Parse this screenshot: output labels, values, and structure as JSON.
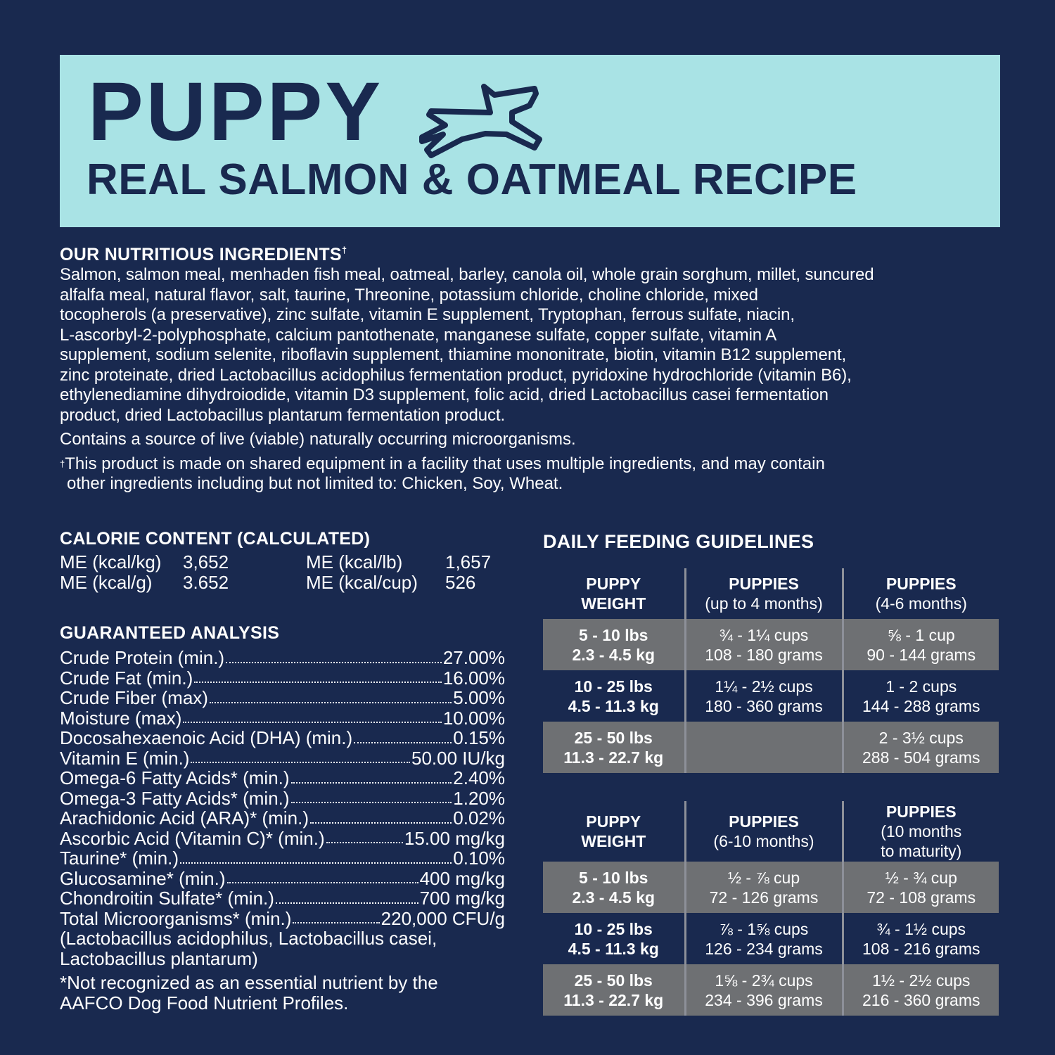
{
  "header": {
    "title": "PUPPY",
    "subtitle": "REAL SALMON & OATMEAL RECIPE",
    "icon": "running-dog-icon",
    "colors": {
      "background": "#19294f",
      "banner": "#a9e3e5",
      "row_shade": "#6e7073"
    }
  },
  "ingredients": {
    "heading": "OUR NUTRITIOUS INGREDIENTS",
    "dagger": "†",
    "lines": [
      "Salmon, salmon meal, menhaden fish meal, oatmeal, barley, canola oil, whole grain sorghum, millet, suncured",
      "alfalfa meal, natural flavor, salt, taurine, Threonine, potassium chloride, choline chloride, mixed",
      "tocopherols (a preservative), zinc sulfate, vitamin E supplement, Tryptophan, ferrous sulfate, niacin,",
      "L-ascorbyl-2-polyphosphate, calcium pantothenate, manganese sulfate, copper sulfate, vitamin A",
      "supplement, sodium selenite, riboflavin supplement, thiamine mononitrate, biotin, vitamin B12 supplement,",
      "zinc proteinate, dried Lactobacillus acidophilus fermentation product, pyridoxine hydrochloride (vitamin B6),",
      "ethylenediamine dihydroiodide, vitamin D3 supplement, folic acid, dried Lactobacillus casei fermentation",
      "product, dried Lactobacillus plantarum fermentation product."
    ],
    "microorganisms": "Contains a source of live (viable) naturally occurring microorganisms.",
    "footnote": [
      "This product is made on shared equipment in a facility that uses multiple ingredients, and may contain",
      "other ingredients including but not limited to: Chicken, Soy, Wheat."
    ]
  },
  "calorie": {
    "heading": "CALORIE CONTENT (CALCULATED)",
    "items": [
      {
        "label": "ME (kcal/kg)",
        "value": "3,652"
      },
      {
        "label": "ME (kcal/lb)",
        "value": "1,657"
      },
      {
        "label": "ME (kcal/g)",
        "value": "3.652"
      },
      {
        "label": "ME (kcal/cup)",
        "value": "526"
      }
    ]
  },
  "analysis": {
    "heading": "GUARANTEED ANALYSIS",
    "items": [
      {
        "label": "Crude Protein (min.)",
        "value": "27.00%"
      },
      {
        "label": "Crude Fat (min.)",
        "value": "16.00%"
      },
      {
        "label": "Crude Fiber (max)",
        "value": "5.00%"
      },
      {
        "label": "Moisture (max)",
        "value": "10.00%"
      },
      {
        "label": "Docosahexaenoic Acid (DHA) (min.)",
        "value": "0.15%"
      },
      {
        "label": "Vitamin E (min.)",
        "value": "50.00 IU/kg"
      },
      {
        "label": "Omega-6 Fatty Acids* (min.)",
        "value": "2.40%"
      },
      {
        "label": "Omega-3 Fatty Acids* (min.)",
        "value": "1.20%"
      },
      {
        "label": "Arachidonic Acid (ARA)* (min.)",
        "value": "0.02%"
      },
      {
        "label": "Ascorbic Acid (Vitamin C)* (min.)",
        "value": "15.00 mg/kg"
      },
      {
        "label": "Taurine* (min.)",
        "value": "0.10%"
      },
      {
        "label": "Glucosamine* (min.)",
        "value": "400 mg/kg"
      },
      {
        "label": "Chondroitin Sulfate* (min.)",
        "value": "700 mg/kg"
      },
      {
        "label": "Total Microorganisms*  (min.)",
        "value": "220,000 CFU/g"
      }
    ],
    "continuation": [
      "(Lactobacillus acidophilus, Lactobacillus casei,",
      "Lactobacillus plantarum)"
    ],
    "note": [
      "*Not recognized as an essential nutrient by the",
      "AAFCO Dog Food Nutrient Profiles."
    ]
  },
  "feeding": {
    "heading": "DAILY FEEDING GUIDELINES",
    "table1": {
      "headers": [
        {
          "bold": "PUPPY",
          "sub": "WEIGHT"
        },
        {
          "bold": "PUPPIES",
          "sub": "(up to 4 months)"
        },
        {
          "bold": "PUPPIES",
          "sub": "(4-6 months)"
        }
      ],
      "rows": [
        [
          [
            "5 - 10 lbs",
            "2.3 - 4.5 kg"
          ],
          [
            "¾ - 1¼ cups",
            "108 - 180 grams"
          ],
          [
            "⅝ - 1 cup",
            "90 - 144 grams"
          ]
        ],
        [
          [
            "10 - 25 lbs",
            "4.5 - 11.3 kg"
          ],
          [
            "1¼ - 2½ cups",
            "180 - 360 grams"
          ],
          [
            "1 - 2 cups",
            "144 - 288 grams"
          ]
        ],
        [
          [
            "25 - 50 lbs",
            "11.3 - 22.7 kg"
          ],
          [
            "",
            ""
          ],
          [
            "2 - 3½ cups",
            "288 - 504 grams"
          ]
        ]
      ]
    },
    "table2": {
      "headers": [
        {
          "bold": "PUPPY",
          "sub": "WEIGHT"
        },
        {
          "bold": "PUPPIES",
          "sub": "(6-10 months)"
        },
        {
          "bold": "PUPPIES",
          "sub": "(10 months",
          "sub2": "to maturity)"
        }
      ],
      "rows": [
        [
          [
            "5 - 10 lbs",
            "2.3 - 4.5 kg"
          ],
          [
            "½ - ⅞ cup",
            "72 - 126 grams"
          ],
          [
            "½ - ¾ cup",
            "72 - 108 grams"
          ]
        ],
        [
          [
            "10 - 25 lbs",
            "4.5 - 11.3 kg"
          ],
          [
            "⅞ - 1⅝ cups",
            "126 - 234 grams"
          ],
          [
            "¾ - 1½ cups",
            "108 - 216 grams"
          ]
        ],
        [
          [
            "25 - 50 lbs",
            "11.3 - 22.7 kg"
          ],
          [
            "1⅝ - 2¾ cups",
            "234 - 396 grams"
          ],
          [
            "1½ - 2½ cups",
            "216 - 360 grams"
          ]
        ]
      ]
    }
  }
}
